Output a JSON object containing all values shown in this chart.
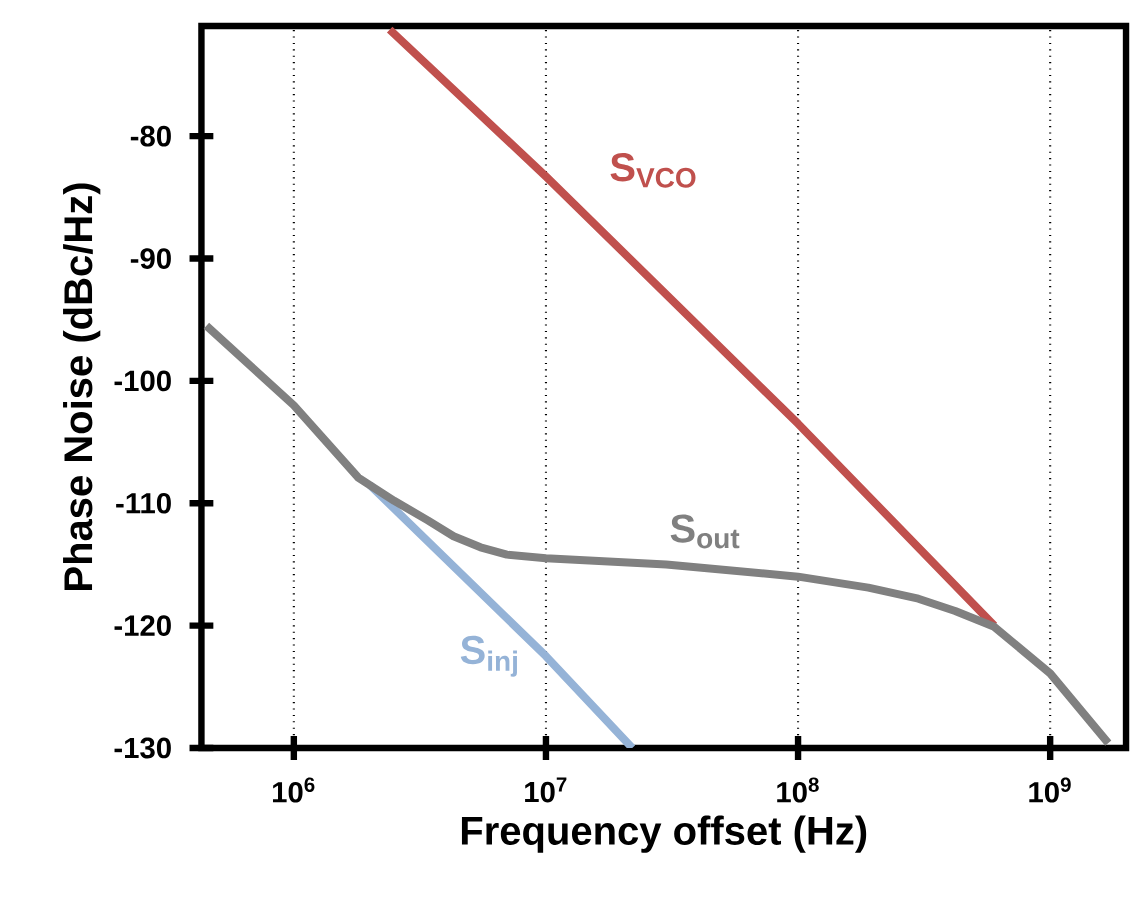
{
  "chart_data": {
    "type": "line",
    "xlabel": "Frequency offset (Hz)",
    "ylabel": "Phase Noise (dBc/Hz)",
    "log": "x",
    "grid": "x",
    "xlim": [
      430000,
      2000000000
    ],
    "ylim": [
      -130,
      -71
    ],
    "xticks": [
      {
        "value": 1000000,
        "label": "10$^{6}$"
      },
      {
        "value": 10000000,
        "label": "10$^{7}$"
      },
      {
        "value": 100000000,
        "label": "10$^{8}$"
      },
      {
        "value": 1000000000,
        "label": "10$^{9}$"
      }
    ],
    "yticks": [
      -130,
      -120,
      -110,
      -100,
      -90,
      -80
    ],
    "line_style": "solid",
    "series": [
      {
        "name": "S$_{inj}$",
        "color": "#95b3d7",
        "x": [
          2000000,
          10000000,
          22000000
        ],
        "values": [
          -108.5,
          -122.5,
          -130
        ]
      },
      {
        "name": "S$_{VCO}$",
        "color": "#c0504d",
        "x": [
          2400000,
          10000000,
          100000000,
          600000000
        ],
        "values": [
          -71.3,
          -83.3,
          -103.5,
          -120
        ]
      },
      {
        "name": "S$_{out}$",
        "color": "#808080",
        "x": [
          450000,
          1000000,
          1800000,
          2500000,
          3400000,
          4300000,
          5500000,
          7000000,
          10000000,
          30000000,
          100000000,
          190000000,
          300000000,
          420000000,
          600000000,
          1000000000,
          1700000000
        ],
        "values": [
          -95.5,
          -102,
          -107.9,
          -109.8,
          -111.4,
          -112.7,
          -113.6,
          -114.2,
          -114.5,
          -115,
          -116,
          -116.9,
          -117.8,
          -118.8,
          -120.1,
          -123.9,
          -129.6
        ]
      }
    ]
  }
}
